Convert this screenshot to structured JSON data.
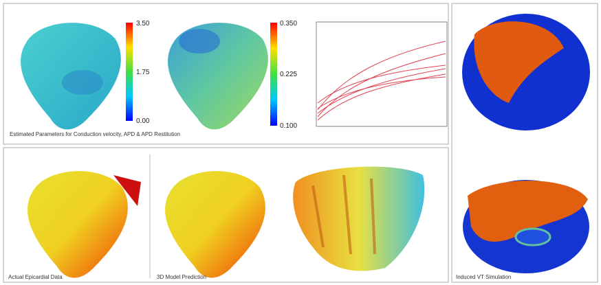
{
  "panels": {
    "estimated": {
      "caption": "Estimated Parameters for Conduction velocity, APD & APD Restitution",
      "colorbar_cv": {
        "labels": [
          "3.50",
          "1.75",
          "0.00"
        ]
      },
      "colorbar_apd": {
        "labels": [
          "0.350",
          "0.225",
          "0.100"
        ]
      }
    },
    "actual": {
      "caption": "Actual Epicardial Data"
    },
    "prediction": {
      "caption": "3D Model Prediction"
    },
    "vt": {
      "caption": "Induced VT Simulation"
    }
  }
}
